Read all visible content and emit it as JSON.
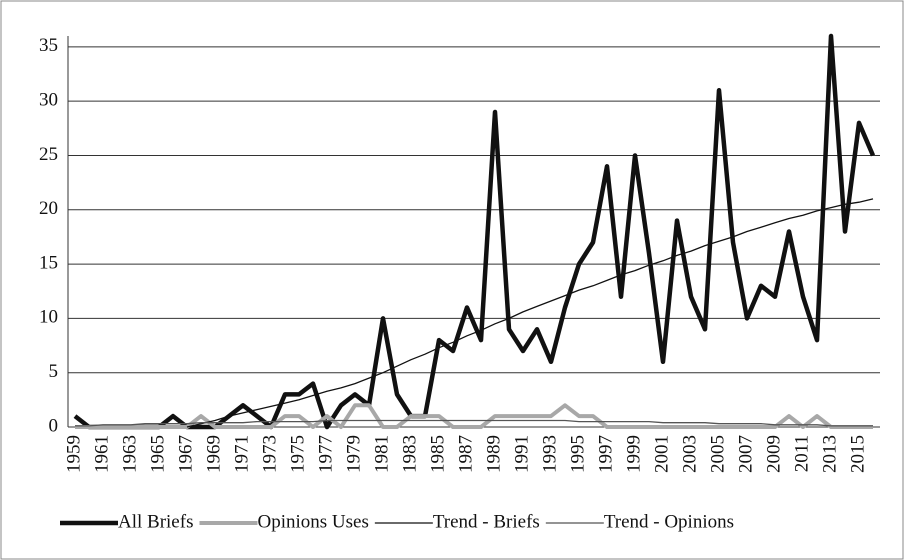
{
  "chart_data": {
    "type": "line",
    "categories": [
      "1959",
      null,
      "1961",
      null,
      "1963",
      null,
      "1965",
      null,
      "1967",
      null,
      "1969",
      null,
      "1971",
      null,
      "1973",
      null,
      "1975",
      null,
      "1977",
      null,
      "1979",
      null,
      "1981",
      null,
      "1983",
      null,
      "1985",
      null,
      "1987",
      null,
      "1989",
      null,
      "1991",
      null,
      "1993",
      null,
      "1995",
      null,
      "1997",
      null,
      "1999",
      null,
      "2001",
      null,
      "2003",
      null,
      "2005",
      null,
      "2007",
      null,
      "2009",
      null,
      "2011",
      null,
      "2013",
      null,
      "2015",
      null
    ],
    "series": [
      {
        "name": "All Briefs",
        "color": "#111111",
        "values": [
          1,
          0,
          0,
          0,
          0,
          0,
          0,
          1,
          0,
          0,
          0,
          1,
          2,
          1,
          0,
          3,
          3,
          4,
          0,
          2,
          3,
          2,
          10,
          3,
          1,
          1,
          8,
          7,
          11,
          8,
          29,
          9,
          7,
          9,
          6,
          11,
          15,
          17,
          24,
          12,
          25,
          16,
          6,
          19,
          12,
          9,
          31,
          17,
          10,
          13,
          12,
          18,
          12,
          8,
          36,
          18,
          28,
          25
        ]
      },
      {
        "name": "Opinions Uses",
        "color": "#a8a8a8",
        "values": [
          0,
          0,
          0,
          0,
          0,
          0,
          0,
          0,
          0,
          1,
          0,
          0,
          0,
          0,
          0,
          1,
          1,
          0,
          1,
          0,
          2,
          2,
          0,
          0,
          1,
          1,
          1,
          0,
          0,
          0,
          1,
          1,
          1,
          1,
          1,
          2,
          1,
          1,
          0,
          0,
          0,
          0,
          0,
          0,
          0,
          0,
          0,
          0,
          0,
          0,
          0,
          1,
          0,
          1,
          0,
          0,
          0,
          0
        ]
      },
      {
        "name": "Trend - Briefs",
        "color": "#111111",
        "values": [
          null,
          null,
          null,
          null,
          null,
          null,
          null,
          null,
          0,
          0.3,
          0.6,
          1.0,
          1.3,
          1.6,
          1.9,
          2.2,
          2.5,
          2.9,
          3.3,
          3.6,
          4.0,
          4.5,
          5.0,
          5.6,
          6.2,
          6.7,
          7.3,
          7.8,
          8.4,
          8.9,
          9.5,
          10.0,
          10.6,
          11.1,
          11.6,
          12.1,
          12.6,
          13.0,
          13.5,
          14.0,
          14.4,
          14.9,
          15.3,
          15.8,
          16.2,
          16.7,
          17.1,
          17.5,
          18.0,
          18.4,
          18.8,
          19.2,
          19.5,
          19.9,
          20.2,
          20.5,
          20.7,
          21.0
        ]
      },
      {
        "name": "Trend - Opinions",
        "color": "#555555",
        "values": [
          0.1,
          0.1,
          0.2,
          0.2,
          0.2,
          0.3,
          0.3,
          0.3,
          0.3,
          0.4,
          0.4,
          0.4,
          0.4,
          0.5,
          0.5,
          0.5,
          0.5,
          0.5,
          0.6,
          0.6,
          0.6,
          0.6,
          0.6,
          0.6,
          0.6,
          0.6,
          0.6,
          0.6,
          0.6,
          0.6,
          0.6,
          0.6,
          0.6,
          0.6,
          0.6,
          0.6,
          0.5,
          0.5,
          0.5,
          0.5,
          0.5,
          0.5,
          0.4,
          0.4,
          0.4,
          0.4,
          0.3,
          0.3,
          0.3,
          0.3,
          0.2,
          0.2,
          0.2,
          0.2,
          0.1,
          0.1,
          0.1,
          0.1
        ]
      }
    ],
    "ylim": [
      0,
      36
    ],
    "yticks": [
      0,
      5,
      10,
      15,
      20,
      25,
      30,
      35
    ],
    "grid": true,
    "legend": "bottom"
  }
}
